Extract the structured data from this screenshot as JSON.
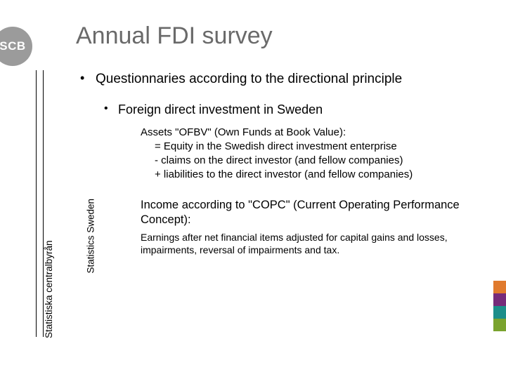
{
  "logo": {
    "text": "SCB"
  },
  "sidebar_text": {
    "en": "Statistics Sweden",
    "sv": "Statistiska centralbyrån"
  },
  "title": "Annual FDI survey",
  "bullet1": "Questionnaries according to the directional principle",
  "sub1": "Foreign direct investment in Sweden",
  "assets_head": "Assets \"OFBV\" (Own Funds at Book Value):",
  "assets_line1": "=  Equity in the Swedish direct investment enterprise",
  "assets_line2": "-  claims on the direct investor (and fellow companies)",
  "assets_line3": "+ liabilities to the direct investor (and fellow companies)",
  "income_head": "Income according to \"COPC\" (Current Operating Performance Concept):",
  "income_body": "Earnings after net financial items adjusted for capital gains and losses, impairments, reversal of impairments and tax.",
  "colors": {
    "title": "#6a6a6a",
    "logo_bg": "#9b9b9b",
    "stack": [
      "#e07a2d",
      "#762b7a",
      "#1c8e8a",
      "#7aa32e"
    ]
  }
}
